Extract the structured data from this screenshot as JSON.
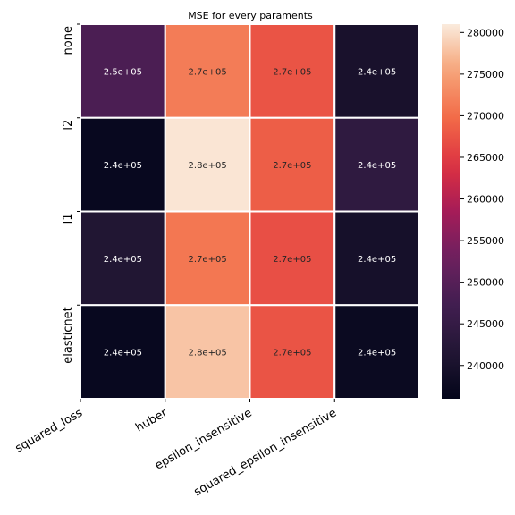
{
  "chart_data": {
    "type": "heatmap",
    "title": "MSE for every paraments",
    "xlabel": "",
    "ylabel": "",
    "x_categories": [
      "squared_loss",
      "huber",
      "epsilon_insensitive",
      "squared_epsilon_insensitive"
    ],
    "y_categories": [
      "none",
      "l2",
      "l1",
      "elasticnet"
    ],
    "values": [
      [
        248500,
        271500,
        267500,
        240000
      ],
      [
        237000,
        280500,
        268500,
        244000
      ],
      [
        241500,
        271000,
        267000,
        239500
      ],
      [
        237000,
        278000,
        267500,
        237500
      ]
    ],
    "cell_labels": [
      [
        "2.5e+05",
        "2.7e+05",
        "2.7e+05",
        "2.4e+05"
      ],
      [
        "2.4e+05",
        "2.8e+05",
        "2.7e+05",
        "2.4e+05"
      ],
      [
        "2.4e+05",
        "2.7e+05",
        "2.7e+05",
        "2.4e+05"
      ],
      [
        "2.4e+05",
        "2.8e+05",
        "2.7e+05",
        "2.4e+05"
      ]
    ],
    "colorbar": {
      "min": 236000,
      "max": 281000,
      "ticks": [
        240000,
        245000,
        250000,
        255000,
        260000,
        265000,
        270000,
        275000,
        280000
      ],
      "tick_labels": [
        "240000",
        "245000",
        "250000",
        "255000",
        "260000",
        "265000",
        "270000",
        "275000",
        "280000"
      ],
      "colormap": "rocket"
    }
  }
}
